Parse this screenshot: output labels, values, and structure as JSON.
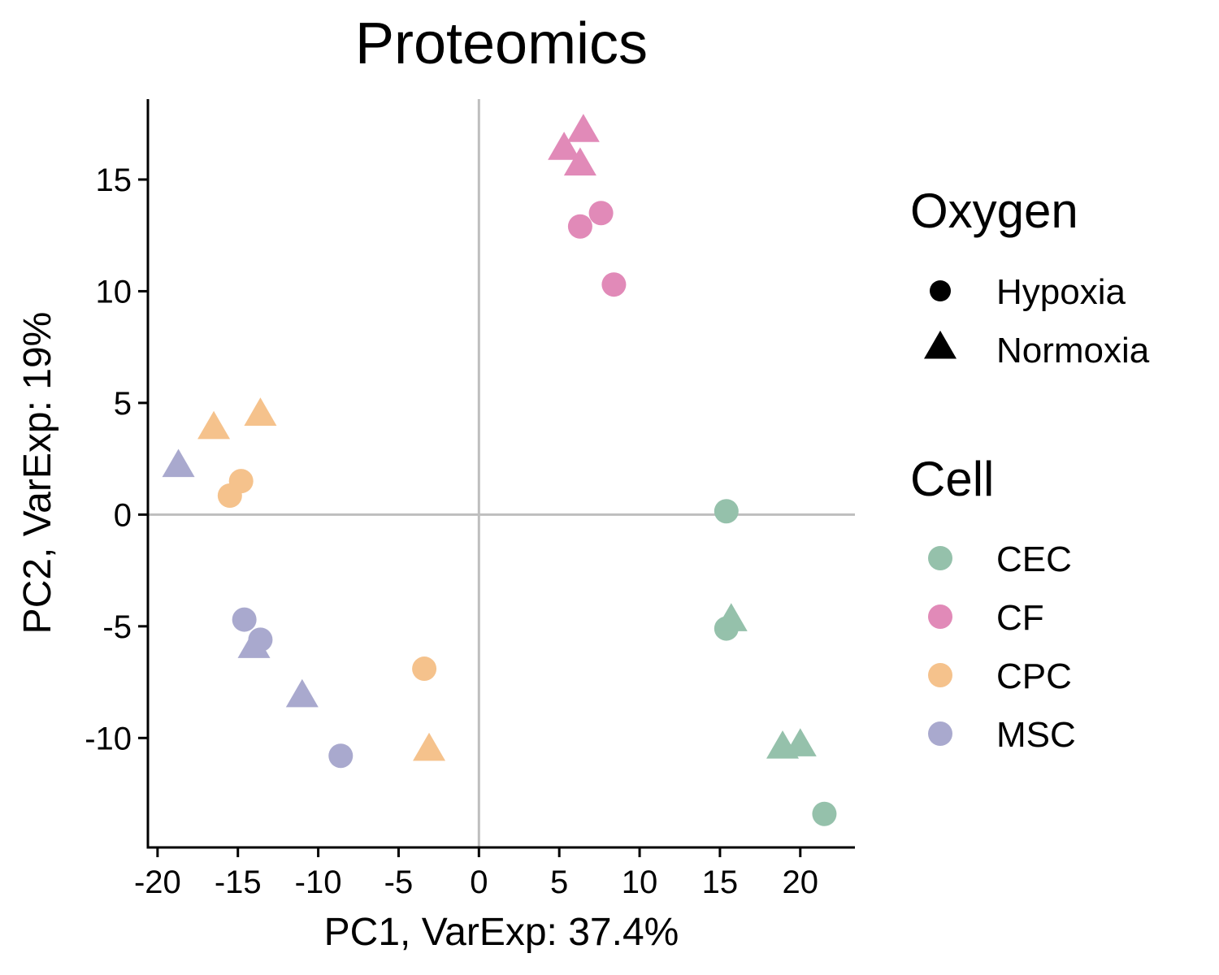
{
  "chart_data": {
    "type": "scatter",
    "title": "Proteomics",
    "xlabel": "PC1, VarExp: 37.4%",
    "ylabel": "PC2, VarExp: 19%",
    "xlim": [
      -20.6,
      23.4
    ],
    "ylim": [
      -14.9,
      18.6
    ],
    "xticks": [
      -20,
      -15,
      -10,
      -5,
      0,
      5,
      10,
      15,
      20
    ],
    "yticks": [
      -10,
      -5,
      0,
      5,
      10,
      15
    ],
    "xtick_labels": [
      "-20",
      "-15",
      "-10",
      "-5",
      "0",
      "5",
      "10",
      "15",
      "20"
    ],
    "ytick_labels": [
      "-10",
      "-5",
      "0",
      "5",
      "10",
      "15"
    ],
    "reference_lines": {
      "x": 0,
      "y": 0,
      "color": "#bebebe"
    },
    "grid": false,
    "legend": {
      "placement": "right",
      "shape_title": "Oxygen",
      "shape_entries": [
        {
          "label": "Hypoxia",
          "shape": "circle"
        },
        {
          "label": "Normoxia",
          "shape": "triangle"
        }
      ],
      "color_title": "Cell",
      "color_entries": [
        {
          "label": "CEC",
          "color": "#95c1ab"
        },
        {
          "label": "CF",
          "color": "#e18ab8"
        },
        {
          "label": "CPC",
          "color": "#f5c28c"
        },
        {
          "label": "MSC",
          "color": "#a9a9ce"
        }
      ]
    },
    "series": [
      {
        "name": "CEC",
        "color": "#95c1ab",
        "points": [
          {
            "x": 15.4,
            "y": 0.15,
            "oxygen": "Hypoxia"
          },
          {
            "x": 15.4,
            "y": -5.1,
            "oxygen": "Hypoxia"
          },
          {
            "x": 21.5,
            "y": -13.4,
            "oxygen": "Hypoxia"
          },
          {
            "x": 15.7,
            "y": -4.8,
            "oxygen": "Normoxia"
          },
          {
            "x": 18.9,
            "y": -10.5,
            "oxygen": "Normoxia"
          },
          {
            "x": 20.0,
            "y": -10.4,
            "oxygen": "Normoxia"
          }
        ]
      },
      {
        "name": "CF",
        "color": "#e18ab8",
        "points": [
          {
            "x": 7.6,
            "y": 13.5,
            "oxygen": "Hypoxia"
          },
          {
            "x": 6.3,
            "y": 12.9,
            "oxygen": "Hypoxia"
          },
          {
            "x": 8.4,
            "y": 10.3,
            "oxygen": "Hypoxia"
          },
          {
            "x": 6.5,
            "y": 17.1,
            "oxygen": "Normoxia"
          },
          {
            "x": 5.3,
            "y": 16.3,
            "oxygen": "Normoxia"
          },
          {
            "x": 6.3,
            "y": 15.6,
            "oxygen": "Normoxia"
          }
        ]
      },
      {
        "name": "CPC",
        "color": "#f5c28c",
        "points": [
          {
            "x": -14.8,
            "y": 1.5,
            "oxygen": "Hypoxia"
          },
          {
            "x": -15.5,
            "y": 0.85,
            "oxygen": "Hypoxia"
          },
          {
            "x": -3.4,
            "y": -6.9,
            "oxygen": "Hypoxia"
          },
          {
            "x": -16.5,
            "y": 3.8,
            "oxygen": "Normoxia"
          },
          {
            "x": -13.6,
            "y": 4.4,
            "oxygen": "Normoxia"
          },
          {
            "x": -3.1,
            "y": -10.6,
            "oxygen": "Normoxia"
          }
        ]
      },
      {
        "name": "MSC",
        "color": "#a9a9ce",
        "points": [
          {
            "x": -14.6,
            "y": -4.7,
            "oxygen": "Hypoxia"
          },
          {
            "x": -13.6,
            "y": -5.6,
            "oxygen": "Hypoxia"
          },
          {
            "x": -8.6,
            "y": -10.8,
            "oxygen": "Hypoxia"
          },
          {
            "x": -18.7,
            "y": 2.1,
            "oxygen": "Normoxia"
          },
          {
            "x": -14.0,
            "y": -6.0,
            "oxygen": "Normoxia"
          },
          {
            "x": -11.0,
            "y": -8.2,
            "oxygen": "Normoxia"
          }
        ]
      }
    ]
  }
}
